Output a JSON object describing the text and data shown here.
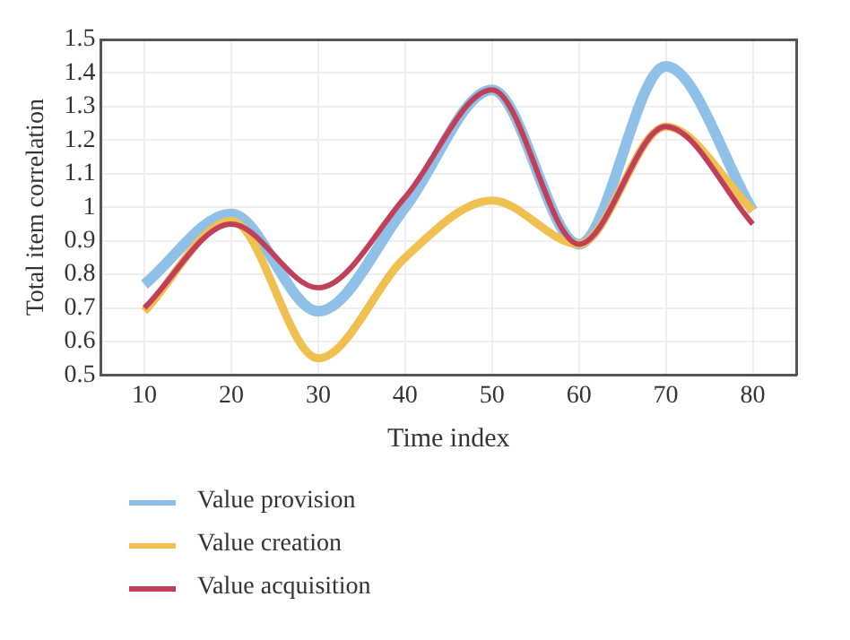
{
  "chart_data": {
    "type": "line",
    "xlabel": "Time index",
    "ylabel": "Total item correlation",
    "x": [
      10,
      20,
      30,
      40,
      50,
      60,
      70,
      80
    ],
    "series": [
      {
        "name": "Value provision",
        "color": "#8fc0e8",
        "values": [
          0.77,
          0.98,
          0.69,
          1.0,
          1.35,
          0.89,
          1.42,
          0.99
        ]
      },
      {
        "name": "Value creation",
        "color": "#f0c050",
        "values": [
          0.69,
          0.96,
          0.55,
          0.85,
          1.02,
          0.89,
          1.24,
          0.99
        ]
      },
      {
        "name": "Value acquisition",
        "color": "#c0405a",
        "values": [
          0.7,
          0.95,
          0.76,
          1.03,
          1.35,
          0.89,
          1.24,
          0.95
        ]
      }
    ],
    "xlim": [
      5,
      85
    ],
    "xticks": [
      10,
      20,
      30,
      40,
      50,
      60,
      70,
      80
    ],
    "ylim": [
      0.5,
      1.5
    ],
    "yticks": [
      0.5,
      0.6,
      0.7,
      0.8,
      0.9,
      1,
      1.1,
      1.2,
      1.3,
      1.4,
      1.5
    ],
    "grid": true,
    "legend": "bottom left",
    "marker": "none",
    "line_style": "solid"
  }
}
